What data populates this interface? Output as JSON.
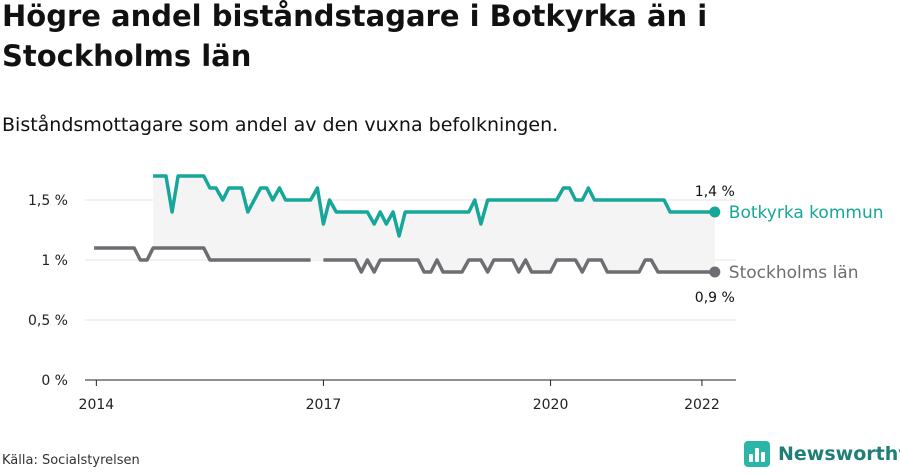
{
  "title": "Högre andel biståndstagare i Botkyrka än i Stockholms län",
  "subtitle": "Biståndsmottagare som andel av den vuxna befolkningen.",
  "source": "Källa: Socialstyrelsen",
  "brand": {
    "name": "Newsworthy",
    "icon": "newsworthy-logo-icon",
    "color": "#2bb5a6"
  },
  "chart_data": {
    "type": "line",
    "title": "Högre andel biståndstagare i Botkyrka än i Stockholms län",
    "subtitle": "Biståndsmottagare som andel av den vuxna befolkningen.",
    "xlabel": "",
    "ylabel": "",
    "ylim": [
      0,
      1.8
    ],
    "xlim": [
      2013.85,
      2022.45
    ],
    "yticks": [
      0,
      0.5,
      1,
      1.5
    ],
    "ytick_labels": [
      "0 %",
      "0,5 %",
      "1 %",
      "1,5 %"
    ],
    "xticks": [
      2014,
      2017,
      2020,
      2022
    ],
    "xtick_labels": [
      "2014",
      "2017",
      "2020",
      "2022"
    ],
    "grid": true,
    "legend": "direct labels at line ends (right)",
    "shaded_gap_between_series": true,
    "series": [
      {
        "name": "Botkyrka kommun",
        "color": "#16a79a",
        "end_label": "1,4 %",
        "points": [
          [
            2014.75,
            1.7
          ],
          [
            2014.92,
            1.7
          ],
          [
            2015.0,
            1.4
          ],
          [
            2015.08,
            1.7
          ],
          [
            2015.42,
            1.7
          ],
          [
            2015.5,
            1.6
          ],
          [
            2015.58,
            1.6
          ],
          [
            2015.67,
            1.5
          ],
          [
            2015.75,
            1.6
          ],
          [
            2015.92,
            1.6
          ],
          [
            2016.0,
            1.4
          ],
          [
            2016.17,
            1.6
          ],
          [
            2016.25,
            1.6
          ],
          [
            2016.33,
            1.5
          ],
          [
            2016.42,
            1.6
          ],
          [
            2016.5,
            1.5
          ],
          [
            2016.83,
            1.5
          ],
          [
            2016.92,
            1.6
          ],
          [
            2017.0,
            1.3
          ],
          [
            2017.08,
            1.5
          ],
          [
            2017.17,
            1.4
          ],
          [
            2017.58,
            1.4
          ],
          [
            2017.67,
            1.3
          ],
          [
            2017.75,
            1.4
          ],
          [
            2017.83,
            1.3
          ],
          [
            2017.92,
            1.4
          ],
          [
            2018.0,
            1.2
          ],
          [
            2018.08,
            1.4
          ],
          [
            2018.92,
            1.4
          ],
          [
            2019.0,
            1.5
          ],
          [
            2019.08,
            1.3
          ],
          [
            2019.17,
            1.5
          ],
          [
            2020.08,
            1.5
          ],
          [
            2020.17,
            1.6
          ],
          [
            2020.25,
            1.6
          ],
          [
            2020.33,
            1.5
          ],
          [
            2020.42,
            1.5
          ],
          [
            2020.5,
            1.6
          ],
          [
            2020.58,
            1.5
          ],
          [
            2021.5,
            1.5
          ],
          [
            2021.58,
            1.4
          ],
          [
            2022.17,
            1.4
          ]
        ]
      },
      {
        "name": "Stockholms län",
        "color": "#6d6d72",
        "end_label": "0,9 %",
        "points": [
          [
            2013.97,
            1.1
          ],
          [
            2014.5,
            1.1
          ],
          [
            2014.58,
            1.0
          ],
          [
            2014.67,
            1.0
          ],
          [
            2014.75,
            1.1
          ],
          [
            2015.42,
            1.1
          ],
          [
            2015.5,
            1.0
          ],
          [
            2016.83,
            1.0
          ],
          null,
          [
            2017.0,
            1.0
          ],
          [
            2017.42,
            1.0
          ],
          [
            2017.5,
            0.9
          ],
          [
            2017.58,
            1.0
          ],
          [
            2017.67,
            0.9
          ],
          [
            2017.75,
            1.0
          ],
          [
            2018.25,
            1.0
          ],
          [
            2018.33,
            0.9
          ],
          [
            2018.42,
            0.9
          ],
          [
            2018.5,
            1.0
          ],
          [
            2018.58,
            0.9
          ],
          [
            2018.83,
            0.9
          ],
          [
            2018.92,
            1.0
          ],
          [
            2019.08,
            1.0
          ],
          [
            2019.17,
            0.9
          ],
          [
            2019.25,
            1.0
          ],
          [
            2019.5,
            1.0
          ],
          [
            2019.58,
            0.9
          ],
          [
            2019.67,
            1.0
          ],
          [
            2019.75,
            0.9
          ],
          [
            2020.0,
            0.9
          ],
          [
            2020.08,
            1.0
          ],
          [
            2020.33,
            1.0
          ],
          [
            2020.42,
            0.9
          ],
          [
            2020.5,
            1.0
          ],
          [
            2020.67,
            1.0
          ],
          [
            2020.75,
            0.9
          ],
          [
            2021.17,
            0.9
          ],
          [
            2021.25,
            1.0
          ],
          [
            2021.33,
            1.0
          ],
          [
            2021.42,
            0.9
          ],
          [
            2022.17,
            0.9
          ]
        ]
      }
    ]
  }
}
